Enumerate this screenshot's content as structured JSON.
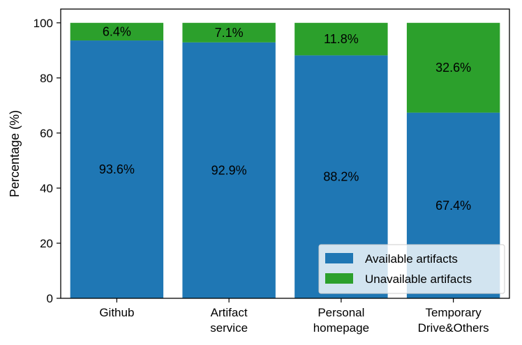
{
  "chart_data": {
    "type": "bar",
    "stacked": true,
    "categories": [
      [
        "Github"
      ],
      [
        "Artifact",
        "service"
      ],
      [
        "Personal",
        "homepage"
      ],
      [
        "Temporary",
        "Drive&Others"
      ]
    ],
    "series": [
      {
        "name": "Available artifacts",
        "values": [
          93.6,
          92.9,
          88.2,
          67.4
        ],
        "labels": [
          "93.6%",
          "92.9%",
          "88.2%",
          "67.4%"
        ],
        "color": "#1f77b4"
      },
      {
        "name": "Unavailable artifacts",
        "values": [
          6.4,
          7.1,
          11.8,
          32.6
        ],
        "labels": [
          "6.4%",
          "7.1%",
          "11.8%",
          "32.6%"
        ],
        "color": "#2ca02c"
      }
    ],
    "ylabel": "Percentage (%)",
    "xlabel": "",
    "ylim": [
      0,
      105
    ],
    "yticks": [
      0,
      20,
      40,
      60,
      80,
      100
    ],
    "legend_position": "lower-right",
    "grid": false
  }
}
